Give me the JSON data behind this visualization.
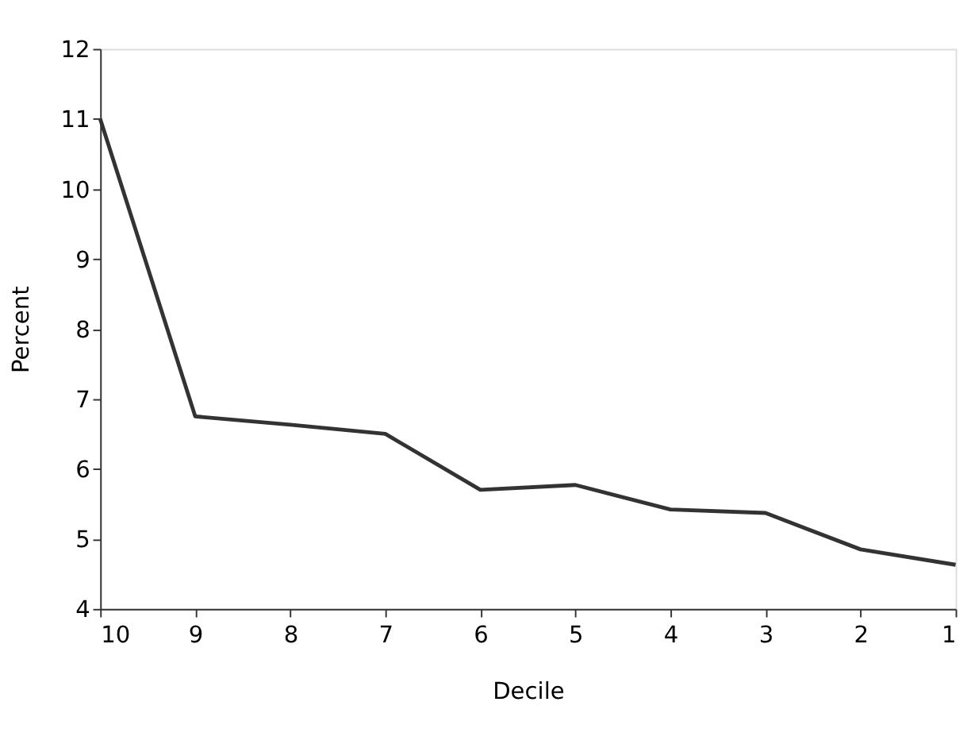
{
  "chart_data": {
    "type": "line",
    "xlabel": "Decile",
    "ylabel": "Percent",
    "x": [
      10,
      9,
      8,
      7,
      6,
      5,
      4,
      3,
      2,
      1
    ],
    "series": [
      {
        "color": "#333333",
        "values": [
          11.0,
          6.75,
          6.63,
          6.5,
          5.7,
          5.77,
          5.42,
          5.37,
          4.85,
          4.63
        ]
      }
    ],
    "xlim": [
      10,
      1
    ],
    "xticks": [
      10,
      9,
      8,
      7,
      6,
      5,
      4,
      3,
      2,
      1
    ],
    "ylim": [
      4,
      12
    ],
    "yticks": [
      4,
      5,
      6,
      7,
      8,
      9,
      10,
      11,
      12
    ],
    "grid": false,
    "legend": false,
    "marker": "none",
    "line_style": "solid"
  }
}
